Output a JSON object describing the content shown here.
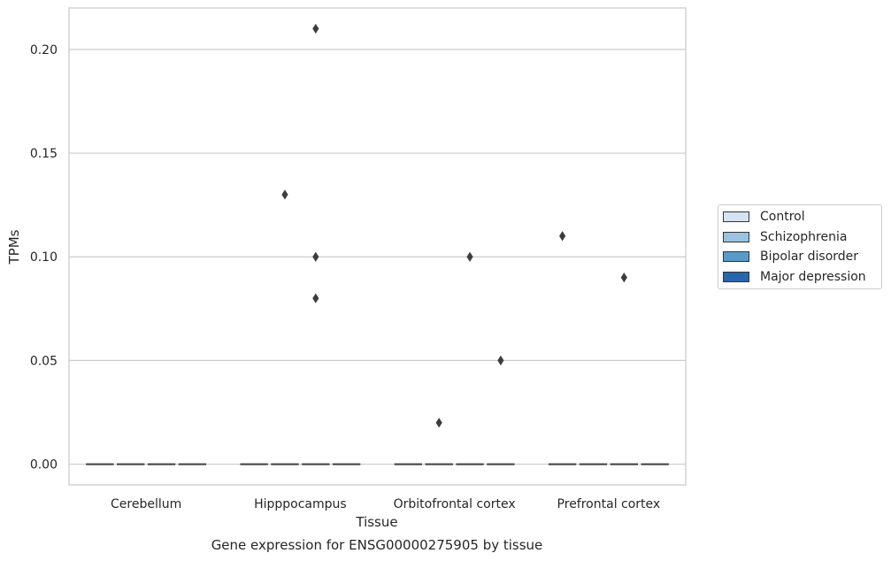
{
  "chart_data": {
    "type": "box",
    "caption": "Gene expression for ENSG00000275905 by tissue",
    "xlabel": "Tissue",
    "ylabel": "TPMs",
    "ylim": [
      -0.01,
      0.22
    ],
    "yticks": [
      0.0,
      0.05,
      0.1,
      0.15,
      0.2
    ],
    "ytick_labels": [
      "0.00",
      "0.05",
      "0.10",
      "0.15",
      "0.20"
    ],
    "categories": [
      "Cerebellum",
      "Hipppocampus",
      "Orbitofrontal cortex",
      "Prefrontal cortex"
    ],
    "grid": true,
    "legend_position": "right",
    "series": [
      {
        "name": "Control",
        "color": "#d4e3f1",
        "medians": [
          0,
          0,
          0,
          0
        ],
        "outliers": [
          [],
          [],
          [],
          [
            0.11
          ]
        ]
      },
      {
        "name": "Schizophrenia",
        "color": "#99c3de",
        "medians": [
          0,
          0,
          0,
          0
        ],
        "outliers": [
          [],
          [
            0.13
          ],
          [
            0.02
          ],
          []
        ]
      },
      {
        "name": "Bipolar disorder",
        "color": "#5a9ac8",
        "medians": [
          0,
          0,
          0,
          0
        ],
        "outliers": [
          [],
          [
            0.21,
            0.1,
            0.08
          ],
          [
            0.1
          ],
          [
            0.09
          ]
        ]
      },
      {
        "name": "Major depression",
        "color": "#2767ad",
        "medians": [
          0,
          0,
          0,
          0
        ],
        "outliers": [
          [],
          [],
          [
            0.05
          ],
          []
        ]
      }
    ]
  }
}
